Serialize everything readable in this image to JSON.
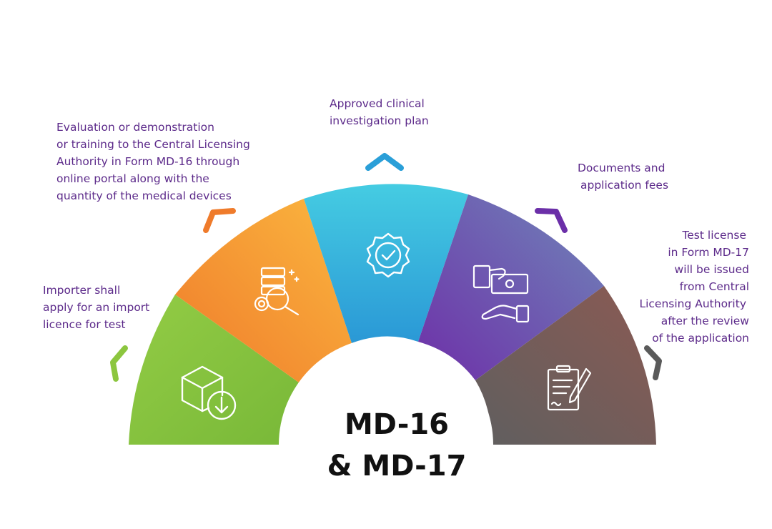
{
  "center": {
    "line1": "MD-16",
    "line2": "& MD-17"
  },
  "steps": [
    {
      "id": "import-licence",
      "color_from": "#8cc63f",
      "color_to": "#7ab83a",
      "icon": "package-download-icon",
      "lines": [
        "Importer shall",
        "apply for an import",
        "licence for test"
      ]
    },
    {
      "id": "evaluation",
      "color_from": "#f7a839",
      "color_to": "#f07e2c",
      "icon": "server-gear-search-icon",
      "lines": [
        "Evaluation or demonstration",
        "or training to the Central Licensing",
        "Authority in Form MD-16 through",
        "online portal along with the",
        "quantity of the medical devices"
      ]
    },
    {
      "id": "clinical-plan",
      "color_from": "#3ec6e0",
      "color_to": "#2a9fd8",
      "icon": "approved-badge-icon",
      "lines": [
        "Approved clinical",
        "investigation plan"
      ]
    },
    {
      "id": "documents-fees",
      "color_from": "#7a3fb0",
      "color_to": "#6d7fb8",
      "icon": "payment-hand-icon",
      "lines": [
        "Documents and",
        "application fees"
      ]
    },
    {
      "id": "test-license",
      "color_from": "#6b6b6b",
      "color_to": "#8a5a52",
      "icon": "signed-document-icon",
      "lines": [
        "Test license",
        "in Form MD-17",
        "will be issued",
        "from Central",
        "Licensing Authority",
        "after the review",
        "of the application"
      ]
    }
  ]
}
